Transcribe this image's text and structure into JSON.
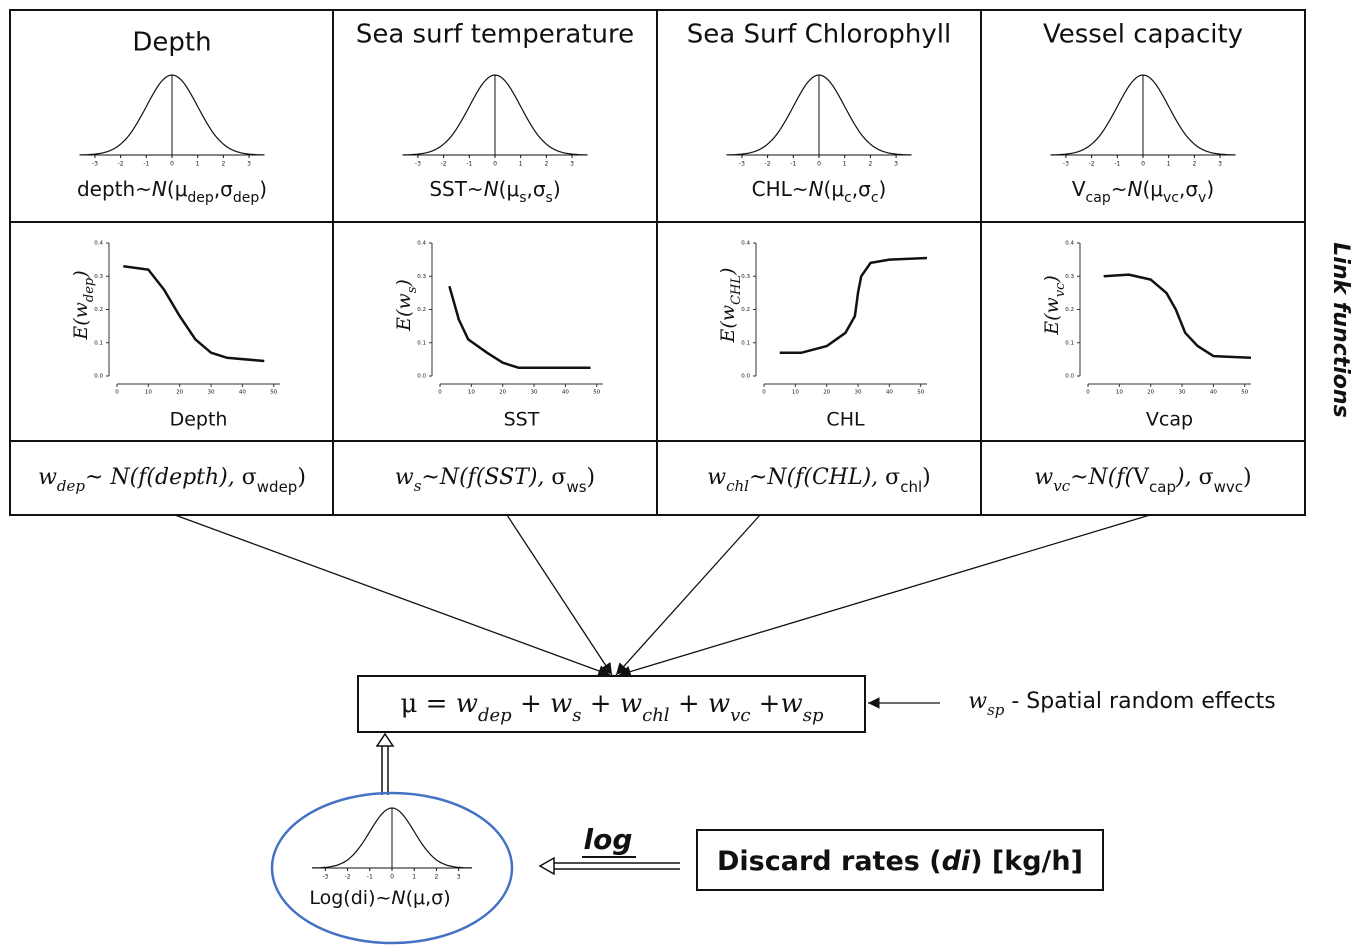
{
  "columns": [
    {
      "title": "Depth",
      "distribution": [
        {
          "text": "depth~",
          "style": "t"
        },
        {
          "text": "N",
          "style": "ti"
        },
        {
          "text": "(μ",
          "style": "t"
        },
        {
          "text": "dep",
          "style": "ts"
        },
        {
          "text": ",σ",
          "style": "t"
        },
        {
          "text": "dep",
          "style": "ts"
        },
        {
          "text": ")",
          "style": "t"
        }
      ],
      "link_ylabel": [
        {
          "text": "E(w",
          "style": "mi"
        },
        {
          "text": "dep",
          "style": "mis"
        },
        {
          "text": ")",
          "style": "mi"
        }
      ],
      "link_xlabel": "Depth",
      "weight": [
        {
          "text": "w",
          "style": "mi"
        },
        {
          "text": "dep",
          "style": "mis"
        },
        {
          "text": "~ N(f(depth), ",
          "style": "mi"
        },
        {
          "text": "σ",
          "style": "m"
        },
        {
          "text": "wdep",
          "style": "ts"
        },
        {
          "text": ")",
          "style": "m"
        }
      ]
    },
    {
      "title": "Sea surf temperature",
      "distribution": [
        {
          "text": "SST~",
          "style": "t"
        },
        {
          "text": "N",
          "style": "ti"
        },
        {
          "text": "(μ",
          "style": "t"
        },
        {
          "text": "s",
          "style": "ts"
        },
        {
          "text": ",σ",
          "style": "t"
        },
        {
          "text": "s",
          "style": "ts"
        },
        {
          "text": ")",
          "style": "t"
        }
      ],
      "link_ylabel": [
        {
          "text": "E(w",
          "style": "mi"
        },
        {
          "text": "s",
          "style": "mis"
        },
        {
          "text": ")",
          "style": "mi"
        }
      ],
      "link_xlabel": "SST",
      "weight": [
        {
          "text": "w",
          "style": "mi"
        },
        {
          "text": "s",
          "style": "mis"
        },
        {
          "text": "~N(f(SST), ",
          "style": "mi"
        },
        {
          "text": "σ",
          "style": "m"
        },
        {
          "text": "ws",
          "style": "ts"
        },
        {
          "text": ")",
          "style": "m"
        }
      ]
    },
    {
      "title": "Sea Surf Chlorophyll",
      "distribution": [
        {
          "text": "CHL~",
          "style": "t"
        },
        {
          "text": "N",
          "style": "ti"
        },
        {
          "text": "(μ",
          "style": "t"
        },
        {
          "text": "c",
          "style": "ts"
        },
        {
          "text": ",σ",
          "style": "t"
        },
        {
          "text": "c",
          "style": "ts"
        },
        {
          "text": ")",
          "style": "t"
        }
      ],
      "link_ylabel": [
        {
          "text": "E(w",
          "style": "mi"
        },
        {
          "text": "CHL",
          "style": "mis"
        },
        {
          "text": ")",
          "style": "mi"
        }
      ],
      "link_xlabel": "CHL",
      "weight": [
        {
          "text": "w",
          "style": "mi"
        },
        {
          "text": "chl",
          "style": "mis"
        },
        {
          "text": "~N(f(CHL), ",
          "style": "mi"
        },
        {
          "text": "σ",
          "style": "m"
        },
        {
          "text": "chl",
          "style": "ts"
        },
        {
          "text": ")",
          "style": "m"
        }
      ]
    },
    {
      "title": "Vessel capacity",
      "distribution": [
        {
          "text": "V",
          "style": "t"
        },
        {
          "text": "cap",
          "style": "ts"
        },
        {
          "text": "~",
          "style": "t"
        },
        {
          "text": "N",
          "style": "ti"
        },
        {
          "text": "(μ",
          "style": "t"
        },
        {
          "text": "vc",
          "style": "ts"
        },
        {
          "text": ",σ",
          "style": "t"
        },
        {
          "text": "v",
          "style": "ts"
        },
        {
          "text": ")",
          "style": "t"
        }
      ],
      "link_ylabel": [
        {
          "text": "E(w",
          "style": "mi"
        },
        {
          "text": "vc",
          "style": "mis"
        },
        {
          "text": ")",
          "style": "mi"
        }
      ],
      "link_xlabel": "Vcap",
      "weight": [
        {
          "text": "w",
          "style": "mi"
        },
        {
          "text": "vc",
          "style": "mis"
        },
        {
          "text": "~N(f(",
          "style": "mi"
        },
        {
          "text": "V",
          "style": "m"
        },
        {
          "text": "cap",
          "style": "ts"
        },
        {
          "text": "), ",
          "style": "mi"
        },
        {
          "text": "σ",
          "style": "m"
        },
        {
          "text": "wvc",
          "style": "ts"
        },
        {
          "text": ")",
          "style": "m"
        }
      ]
    }
  ],
  "normal_ticks": [
    "-3",
    "-2",
    "-1",
    "0",
    "1",
    "2",
    "3"
  ],
  "link_xticks": [
    "0",
    "10",
    "20",
    "30",
    "40",
    "50"
  ],
  "link_yticks": [
    "0.0",
    "0.1",
    "0.2",
    "0.3",
    "0.4"
  ],
  "side_label": "Link functions",
  "mu_equation": [
    {
      "text": "μ = ",
      "style": "m"
    },
    {
      "text": "w",
      "style": "mi"
    },
    {
      "text": "dep",
      "style": "mis"
    },
    {
      "text": " + ",
      "style": "m"
    },
    {
      "text": "w",
      "style": "mi"
    },
    {
      "text": "s",
      "style": "mis"
    },
    {
      "text": " + ",
      "style": "m"
    },
    {
      "text": "w",
      "style": "mi"
    },
    {
      "text": "chl",
      "style": "mis"
    },
    {
      "text": " + ",
      "style": "m"
    },
    {
      "text": "w",
      "style": "mi"
    },
    {
      "text": "vc",
      "style": "mis"
    },
    {
      "text": " +",
      "style": "m"
    },
    {
      "text": "w",
      "style": "mi"
    },
    {
      "text": "sp",
      "style": "mis"
    }
  ],
  "spatial_note": [
    {
      "text": "w",
      "style": "mi"
    },
    {
      "text": "sp",
      "style": "mis"
    },
    {
      "text": " - Spatial random effects",
      "style": "t"
    }
  ],
  "log_label": "log",
  "discard": [
    {
      "text": "Discard rates (",
      "style": "tb"
    },
    {
      "text": "di",
      "style": "tbi"
    },
    {
      "text": ") [kg/h]",
      "style": "tb"
    }
  ],
  "log_distribution": [
    {
      "text": "Log(di)~",
      "style": "t"
    },
    {
      "text": "N",
      "style": "ti"
    },
    {
      "text": "(μ,σ)",
      "style": "t"
    }
  ]
}
